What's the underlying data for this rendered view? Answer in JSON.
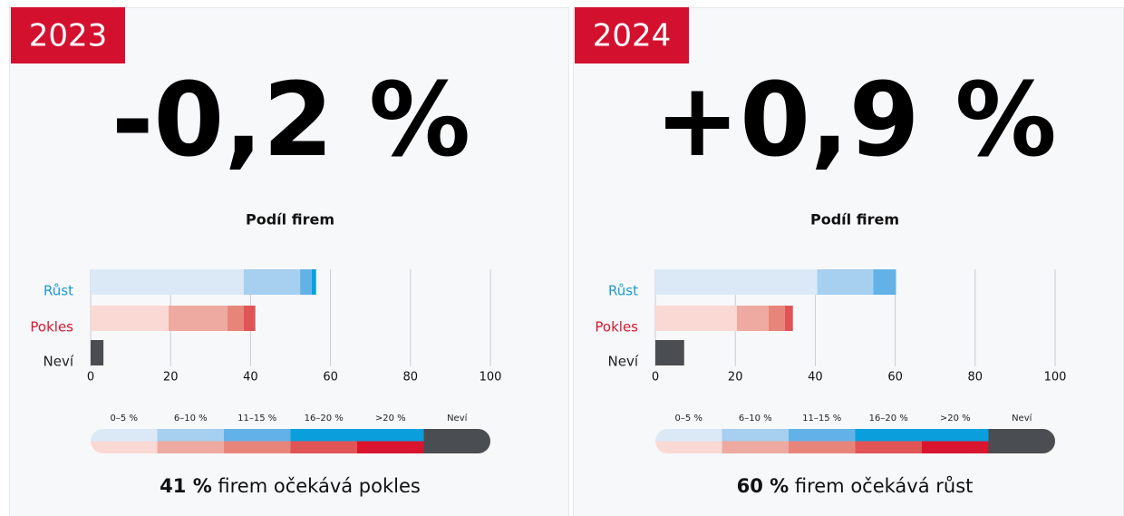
{
  "panels": [
    {
      "year": "2023",
      "headline": "-0,2 %",
      "subtitle": "Podíl firem",
      "summary_value": "41 %",
      "summary_text": "firem očekává pokles"
    },
    {
      "year": "2024",
      "headline": "+0,9 %",
      "subtitle": "Podíl firem",
      "summary_value": "60 %",
      "summary_text": "firem očekává růst"
    }
  ],
  "chart_data": [
    {
      "type": "bar",
      "orientation": "horizontal",
      "stacked": true,
      "categories": [
        "Růst",
        "Pokles",
        "Neví"
      ],
      "category_colors": [
        "#1a9bd7",
        "#d6182f",
        "#222222"
      ],
      "series": [
        {
          "name": "0–5 %",
          "colors": [
            "#dbe9f7",
            "#fad9d4",
            null
          ],
          "values": [
            38.3,
            19.5,
            null
          ]
        },
        {
          "name": "6–10 %",
          "colors": [
            "#a6cff0",
            "#eeaaa0",
            null
          ],
          "values": [
            14.1,
            14.7,
            null
          ]
        },
        {
          "name": "11–15 %",
          "colors": [
            "#62b2e8",
            "#e8857a",
            null
          ],
          "values": [
            2.9,
            4.1,
            null
          ]
        },
        {
          "name": "16–20 %",
          "colors": [
            "#0a9fdc",
            "#e05456",
            null
          ],
          "values": [
            1.1,
            2.9,
            null
          ]
        },
        {
          "name": ">20 %",
          "colors": [
            "#0a9fdc",
            "#d8142f",
            null
          ],
          "values": [
            null,
            null,
            null
          ]
        },
        {
          "name": "Neví",
          "colors": [
            null,
            null,
            "#4a4d52"
          ],
          "values": [
            null,
            null,
            3.2
          ]
        }
      ],
      "xlim": [
        0,
        100
      ],
      "xticks": [
        0,
        20,
        40,
        60,
        80,
        100
      ],
      "grid": true
    },
    {
      "type": "bar",
      "orientation": "horizontal",
      "stacked": true,
      "categories": [
        "Růst",
        "Pokles",
        "Neví"
      ],
      "category_colors": [
        "#1a9bd7",
        "#d6182f",
        "#222222"
      ],
      "series": [
        {
          "name": "0–5 %",
          "colors": [
            "#dbe9f7",
            "#fad9d4",
            null
          ],
          "values": [
            40.5,
            20.4,
            null
          ]
        },
        {
          "name": "6–10 %",
          "colors": [
            "#a6cff0",
            "#eeaaa0",
            null
          ],
          "values": [
            14.0,
            7.9,
            null
          ]
        },
        {
          "name": "11–15 %",
          "colors": [
            "#62b2e8",
            "#e8857a",
            null
          ],
          "values": [
            5.7,
            4.1,
            null
          ]
        },
        {
          "name": "16–20 %",
          "colors": [
            "#0a9fdc",
            "#e05456",
            null
          ],
          "values": [
            null,
            2.0,
            null
          ]
        },
        {
          "name": ">20 %",
          "colors": [
            "#0a9fdc",
            "#d8142f",
            null
          ],
          "values": [
            null,
            null,
            null
          ]
        },
        {
          "name": "Neví",
          "colors": [
            null,
            null,
            "#4a4d52"
          ],
          "values": [
            null,
            null,
            7.2
          ]
        }
      ],
      "xlim": [
        0,
        100
      ],
      "xticks": [
        0,
        20,
        40,
        60,
        80,
        100
      ],
      "grid": true
    }
  ]
}
